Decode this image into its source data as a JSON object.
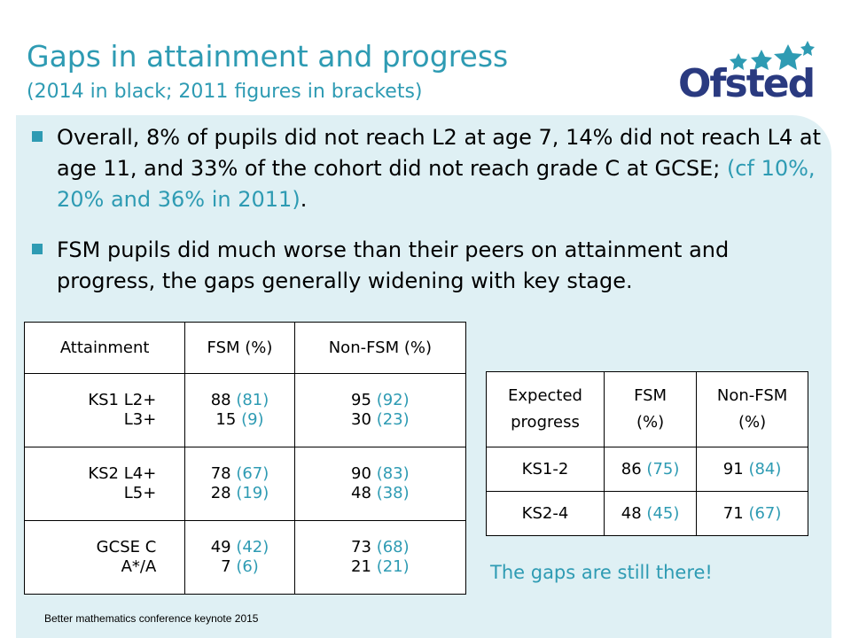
{
  "title": "Gaps in attainment and progress",
  "subtitle": "(2014 in black; 2011 figures in brackets)",
  "logo": {
    "text": "Ofsted"
  },
  "bullets": [
    {
      "text_a": "Overall, 8% of pupils did not reach L2 at age 7, 14% did not reach L4 at age 11, and 33% of the cohort did not reach grade C at GCSE; ",
      "text_teal": "(cf 10%, 20% and 36% in 2011)",
      "text_end": "."
    },
    {
      "text_a": "FSM pupils did much worse than their peers on attainment and progress, the gaps generally widening with key stage."
    }
  ],
  "attainment_table": {
    "headers": [
      "Attainment",
      "FSM (%)",
      "Non-FSM (%)"
    ],
    "rows": [
      {
        "labels": [
          "KS1 L2+",
          "L3+"
        ],
        "fsm": [
          [
            "88",
            "(81)"
          ],
          [
            "15",
            "(9)"
          ]
        ],
        "nonfsm": [
          [
            "95",
            "(92)"
          ],
          [
            "30",
            "(23)"
          ]
        ]
      },
      {
        "labels": [
          "KS2 L4+",
          "L5+"
        ],
        "fsm": [
          [
            "78",
            "(67)"
          ],
          [
            "28",
            "(19)"
          ]
        ],
        "nonfsm": [
          [
            "90",
            "(83)"
          ],
          [
            "48",
            "(38)"
          ]
        ]
      },
      {
        "labels": [
          "GCSE C",
          "A*/A"
        ],
        "fsm": [
          [
            "49",
            "(42)"
          ],
          [
            "7",
            "(6)"
          ]
        ],
        "nonfsm": [
          [
            "73",
            "(68)"
          ],
          [
            "21",
            "(21)"
          ]
        ]
      }
    ]
  },
  "progress_table": {
    "headers": [
      [
        "Expected",
        "progress"
      ],
      [
        "FSM",
        "(%)"
      ],
      [
        "Non-FSM",
        "(%)"
      ]
    ],
    "rows": [
      {
        "label": "KS1-2",
        "fsm": [
          "86",
          "(75)"
        ],
        "nonfsm": [
          "91",
          "(84)"
        ]
      },
      {
        "label": "KS2-4",
        "fsm": [
          "48",
          "(45)"
        ],
        "nonfsm": [
          "71",
          "(67)"
        ]
      }
    ]
  },
  "note": "The gaps are still there!",
  "footer": "Better mathematics conference keynote 2015",
  "colors": {
    "accent": "#2e9bb3",
    "panel": "#dff0f4",
    "logo": "#2a3a80"
  }
}
